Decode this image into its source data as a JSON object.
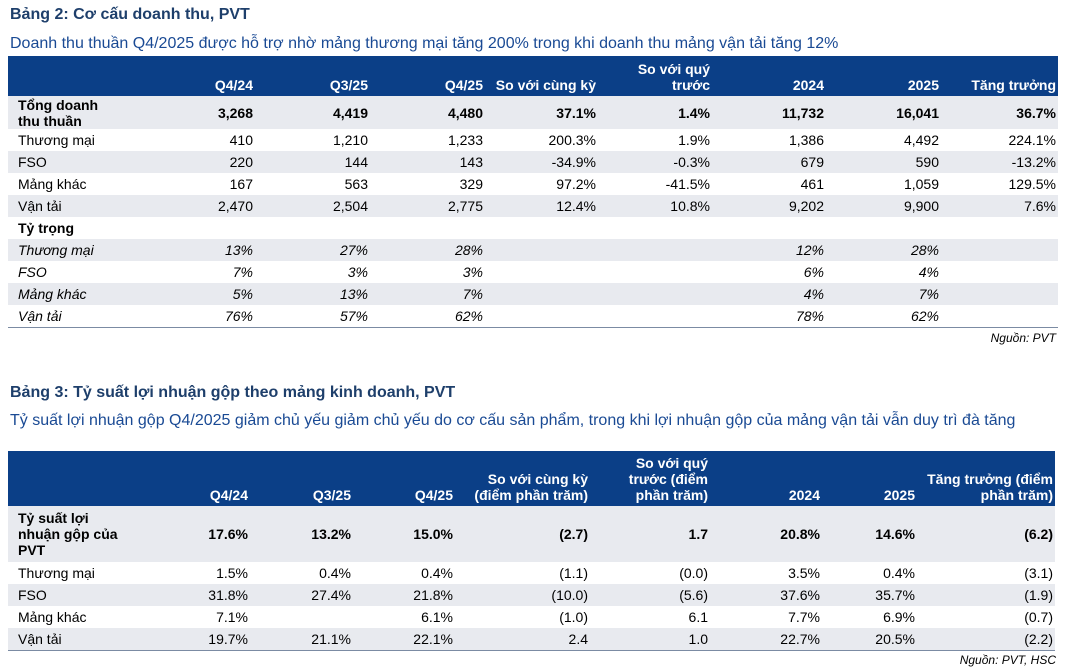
{
  "table2": {
    "title": "Bảng 2: Cơ cấu doanh thu, PVT",
    "subtitle": "Doanh thu thuần Q4/2025 được hỗ trợ nhờ mảng thương mại tăng 200% trong khi doanh thu mảng vận tải tăng 12%",
    "headers": [
      "",
      "Q4/24",
      "Q3/25",
      "Q4/25",
      "So với cùng kỳ",
      "So với quý trước",
      "2024",
      "2025",
      "Tăng trưởng"
    ],
    "rows": [
      {
        "style": "b",
        "cells": [
          "Tổng doanh thu thuần",
          "3,268",
          "4,419",
          "4,480",
          "37.1%",
          "1.4%",
          "11,732",
          "16,041",
          "36.7%"
        ]
      },
      {
        "style": "",
        "cells": [
          "Thương mại",
          "410",
          "1,210",
          "1,233",
          "200.3%",
          "1.9%",
          "1,386",
          "4,492",
          "224.1%"
        ]
      },
      {
        "style": "",
        "cells": [
          "FSO",
          "220",
          "144",
          "143",
          "-34.9%",
          "-0.3%",
          "679",
          "590",
          "-13.2%"
        ]
      },
      {
        "style": "",
        "cells": [
          "Mảng khác",
          "167",
          "563",
          "329",
          "97.2%",
          "-41.5%",
          "461",
          "1,059",
          "129.5%"
        ]
      },
      {
        "style": "",
        "cells": [
          "Vận tải",
          "2,470",
          "2,504",
          "2,775",
          "12.4%",
          "10.8%",
          "9,202",
          "9,900",
          "7.6%"
        ]
      },
      {
        "style": "b",
        "cells": [
          "Tỷ trọng",
          "",
          "",
          "",
          "",
          "",
          "",
          "",
          ""
        ]
      },
      {
        "style": "i",
        "cells": [
          "Thương mại",
          "13%",
          "27%",
          "28%",
          "",
          "",
          "12%",
          "28%",
          ""
        ]
      },
      {
        "style": "i",
        "cells": [
          "FSO",
          "7%",
          "3%",
          "3%",
          "",
          "",
          "6%",
          "4%",
          ""
        ]
      },
      {
        "style": "i",
        "cells": [
          "Mảng khác",
          "5%",
          "13%",
          "7%",
          "",
          "",
          "4%",
          "7%",
          ""
        ]
      },
      {
        "style": "i",
        "cells": [
          "Vận tải",
          "76%",
          "57%",
          "62%",
          "",
          "",
          "78%",
          "62%",
          ""
        ]
      }
    ],
    "source": "Nguồn: PVT"
  },
  "table3": {
    "title": "Bảng 3: Tỷ suất lợi nhuận gộp theo mảng kinh doanh, PVT",
    "subtitle": "Tỷ suất lợi nhuận gộp Q4/2025 giảm chủ yếu giảm chủ yếu do cơ cấu sản phẩm, trong khi lợi nhuận gộp của mảng vận tải vẫn duy trì đà tăng",
    "headers": [
      "",
      "Q4/24",
      "Q3/25",
      "Q4/25",
      "So với cùng kỳ (điểm phần trăm)",
      "So với quý trước (điểm phần trăm)",
      "2024",
      "2025",
      "Tăng trưởng (điểm phần trăm)"
    ],
    "rows": [
      {
        "style": "b",
        "cells": [
          "Tỷ suất lợi nhuận gộp của PVT",
          "17.6%",
          "13.2%",
          "15.0%",
          "(2.7)",
          "1.7",
          "20.8%",
          "14.6%",
          "(6.2)"
        ]
      },
      {
        "style": "",
        "cells": [
          "Thương mại",
          "1.5%",
          "0.4%",
          "0.4%",
          "(1.1)",
          "(0.0)",
          "3.5%",
          "0.4%",
          "(3.1)"
        ]
      },
      {
        "style": "",
        "cells": [
          "FSO",
          "31.8%",
          "27.4%",
          "21.8%",
          "(10.0)",
          "(5.6)",
          "37.6%",
          "35.7%",
          "(1.9)"
        ]
      },
      {
        "style": "",
        "cells": [
          "Mảng khác",
          "7.1%",
          "",
          "6.1%",
          "(1.0)",
          "6.1",
          "7.7%",
          "6.9%",
          "(0.7)"
        ]
      },
      {
        "style": "",
        "cells": [
          "Vận tải",
          "19.7%",
          "21.1%",
          "22.1%",
          "2.4",
          "1.0",
          "22.7%",
          "20.5%",
          "(2.2)"
        ]
      }
    ],
    "source": "Nguồn: PVT, HSC"
  }
}
